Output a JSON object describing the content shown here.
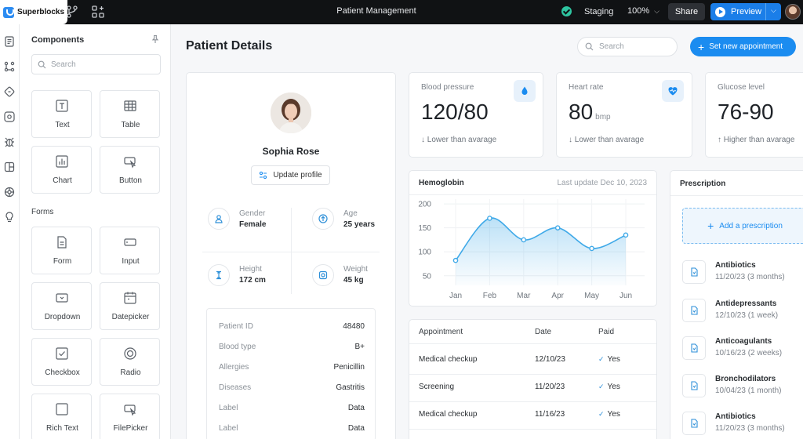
{
  "app": {
    "brand": "Superblocks",
    "title": "Patient Management",
    "environment": "Staging",
    "zoom": "100%",
    "share_label": "Share",
    "preview_label": "Preview"
  },
  "components_panel": {
    "title": "Components",
    "search_placeholder": "Search",
    "sections": [
      {
        "label": "",
        "tiles": [
          {
            "label": "Text",
            "icon": "text-icon"
          },
          {
            "label": "Table",
            "icon": "table-icon"
          },
          {
            "label": "Chart",
            "icon": "chart-icon"
          },
          {
            "label": "Button",
            "icon": "button-icon"
          }
        ]
      },
      {
        "label": "Forms",
        "tiles": [
          {
            "label": "Form",
            "icon": "form-icon"
          },
          {
            "label": "Input",
            "icon": "input-icon"
          },
          {
            "label": "Dropdown",
            "icon": "dropdown-icon"
          },
          {
            "label": "Datepicker",
            "icon": "datepicker-icon"
          },
          {
            "label": "Checkbox",
            "icon": "checkbox-icon"
          },
          {
            "label": "Radio",
            "icon": "radio-icon"
          },
          {
            "label": "Rich Text",
            "icon": "rich-text-icon"
          },
          {
            "label": "FilePicker",
            "icon": "filepicker-icon"
          }
        ]
      }
    ]
  },
  "main": {
    "title": "Patient Details",
    "search_placeholder": "Search",
    "new_appointment_label": "Set new appointment"
  },
  "patient": {
    "name": "Sophia Rose",
    "update_label": "Update profile",
    "stats": [
      {
        "label": "Gender",
        "value": "Female",
        "icon": "person-icon"
      },
      {
        "label": "Age",
        "value": "25 years",
        "icon": "arrow-up-circle-icon"
      },
      {
        "label": "Height",
        "value": "172 cm",
        "icon": "height-icon"
      },
      {
        "label": "Weight",
        "value": "45 kg",
        "icon": "scale-icon"
      }
    ],
    "info": [
      {
        "key": "Patient ID",
        "value": "48480"
      },
      {
        "key": "Blood type",
        "value": "B+"
      },
      {
        "key": "Allergies",
        "value": "Penicillin"
      },
      {
        "key": "Diseases",
        "value": "Gastritis"
      },
      {
        "key": "Label",
        "value": "Data"
      },
      {
        "key": "Label",
        "value": "Data"
      }
    ]
  },
  "vitals": [
    {
      "label": "Blood pressure",
      "value": "120/80",
      "unit": "",
      "note": "↓ Lower than avarage",
      "icon": "drop-icon"
    },
    {
      "label": "Heart rate",
      "value": "80",
      "unit": "bmp",
      "note": "↓ Lower than avarage",
      "icon": "heart-icon"
    },
    {
      "label": "Glucose level",
      "value": "76-90",
      "unit": "",
      "note": "↑ Higher than avarage",
      "icon": "glucose-icon"
    }
  ],
  "hemoglobin": {
    "title": "Hemoglobin",
    "last_update": "Last update Dec 10, 2023"
  },
  "chart_data": {
    "type": "area",
    "categories": [
      "Jan",
      "Feb",
      "Mar",
      "Apr",
      "May",
      "Jun"
    ],
    "series": [
      {
        "values": [
          82,
          170,
          125,
          150,
          107,
          135
        ]
      }
    ],
    "yticks": [
      200,
      150,
      100,
      50
    ],
    "ylim": [
      30,
      210
    ],
    "grid": true,
    "color": "#3fa9e8"
  },
  "appointments": {
    "columns": [
      "Appointment",
      "Date",
      "Paid"
    ],
    "rows": [
      {
        "name": "Medical checkup",
        "date": "12/10/23",
        "paid": "Yes"
      },
      {
        "name": "Screening",
        "date": "11/20/23",
        "paid": "Yes"
      },
      {
        "name": "Medical checkup",
        "date": "11/16/23",
        "paid": "Yes"
      }
    ]
  },
  "prescription": {
    "title": "Prescription",
    "add_label": "Add a prescription",
    "items": [
      {
        "name": "Antibiotics",
        "date": "11/20/23 (3 months)"
      },
      {
        "name": "Antidepressants",
        "date": "12/10/23 (1 week)"
      },
      {
        "name": "Anticoagulants",
        "date": "10/16/23 (2 weeks)"
      },
      {
        "name": "Bronchodilators",
        "date": "10/04/23 (1 month)"
      },
      {
        "name": "Antibiotics",
        "date": "11/20/23 (3 months)"
      }
    ]
  },
  "colors": {
    "accent": "#1b8cf0",
    "topbar": "#101214",
    "success": "#2ec4a0"
  }
}
